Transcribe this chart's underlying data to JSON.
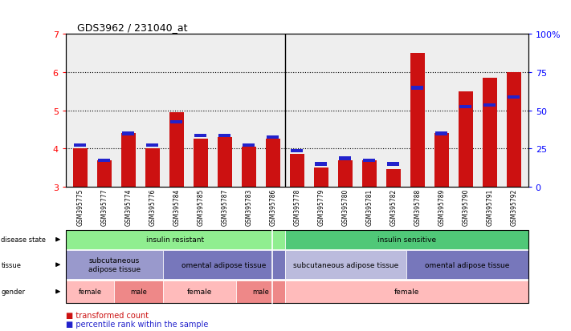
{
  "title": "GDS3962 / 231040_at",
  "samples": [
    "GSM395775",
    "GSM395777",
    "GSM395774",
    "GSM395776",
    "GSM395784",
    "GSM395785",
    "GSM395787",
    "GSM395783",
    "GSM395786",
    "GSM395778",
    "GSM395779",
    "GSM395780",
    "GSM395781",
    "GSM395782",
    "GSM395788",
    "GSM395789",
    "GSM395790",
    "GSM395791",
    "GSM395792"
  ],
  "red_values": [
    4.0,
    3.7,
    4.4,
    4.0,
    4.95,
    4.25,
    4.3,
    4.05,
    4.25,
    3.85,
    3.5,
    3.7,
    3.7,
    3.45,
    6.5,
    4.4,
    5.5,
    5.85,
    6.0
  ],
  "blue_values": [
    4.05,
    3.65,
    4.35,
    4.05,
    4.65,
    4.3,
    4.3,
    4.05,
    4.25,
    3.9,
    3.55,
    3.7,
    3.65,
    3.55,
    5.55,
    4.35,
    5.05,
    5.1,
    5.3
  ],
  "ylim_left": [
    3,
    7
  ],
  "ylim_right": [
    0,
    100
  ],
  "yticks_left": [
    3,
    4,
    5,
    6,
    7
  ],
  "yticks_right": [
    0,
    25,
    50,
    75,
    100
  ],
  "ytick_labels_right": [
    "0",
    "25",
    "50",
    "75",
    "100%"
  ],
  "disease_state_groups": [
    {
      "label": "insulin resistant",
      "start": 0,
      "end": 9,
      "color": "#90EE90"
    },
    {
      "label": "insulin sensitive",
      "start": 9,
      "end": 19,
      "color": "#50C878"
    }
  ],
  "tissue_groups": [
    {
      "label": "subcutaneous\nadipose tissue",
      "start": 0,
      "end": 4,
      "color": "#9999CC"
    },
    {
      "label": "omental adipose tissue",
      "start": 4,
      "end": 9,
      "color": "#7777BB"
    },
    {
      "label": "subcutaneous adipose tissue",
      "start": 9,
      "end": 14,
      "color": "#BBBBDD"
    },
    {
      "label": "omental adipose tissue",
      "start": 14,
      "end": 19,
      "color": "#7777BB"
    }
  ],
  "gender_groups": [
    {
      "label": "female",
      "start": 0,
      "end": 2,
      "color": "#FFBBBB"
    },
    {
      "label": "male",
      "start": 2,
      "end": 4,
      "color": "#EE8888"
    },
    {
      "label": "female",
      "start": 4,
      "end": 7,
      "color": "#FFBBBB"
    },
    {
      "label": "male",
      "start": 7,
      "end": 9,
      "color": "#EE8888"
    },
    {
      "label": "female",
      "start": 9,
      "end": 19,
      "color": "#FFBBBB"
    }
  ],
  "bar_color": "#CC1111",
  "blue_color": "#2222CC",
  "background_color": "#FFFFFF",
  "plot_bg_color": "#EEEEEE",
  "separator_after": 8,
  "n_samples": 19,
  "baseline": 3.0
}
